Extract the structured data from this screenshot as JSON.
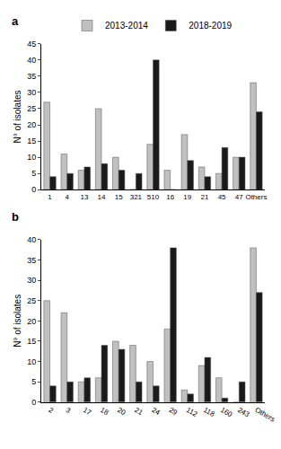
{
  "chart_data": [
    {
      "type": "bar",
      "title": "a",
      "y_label": "N° of isolates",
      "categories": [
        "1",
        "4",
        "13",
        "14",
        "15",
        "321",
        "510",
        "16",
        "19",
        "21",
        "45",
        "47",
        "Others"
      ],
      "series": [
        {
          "name": "2013-2014",
          "color": "#c0c0c0",
          "values": [
            27,
            11,
            6,
            25,
            10,
            0,
            14,
            6,
            17,
            7,
            5,
            10,
            33
          ]
        },
        {
          "name": "2018-2019",
          "color": "#1a1a1a",
          "values": [
            4,
            5,
            7,
            8,
            6,
            5,
            40,
            0,
            9,
            4,
            13,
            10,
            24
          ]
        }
      ],
      "ylim": [
        0,
        45
      ],
      "yticks": [
        0,
        5,
        10,
        15,
        20,
        25,
        30,
        35,
        40,
        45
      ],
      "grid": false,
      "legend": "top"
    },
    {
      "type": "bar",
      "title": "b",
      "y_label": "N° of isolates",
      "categories": [
        "2",
        "3",
        "17",
        "18",
        "20",
        "21",
        "24",
        "29",
        "112",
        "118",
        "160",
        "243",
        "Others"
      ],
      "series": [
        {
          "name": "2013-2014",
          "color": "#c0c0c0",
          "values": [
            25,
            22,
            5,
            6,
            15,
            14,
            10,
            18,
            3,
            9,
            6,
            0,
            38
          ]
        },
        {
          "name": "2018-2019",
          "color": "#1a1a1a",
          "values": [
            4,
            5,
            6,
            14,
            13,
            5,
            4,
            38,
            2,
            11,
            1,
            5,
            27
          ]
        }
      ],
      "ylim": [
        0,
        40
      ],
      "yticks": [
        0,
        5,
        10,
        15,
        20,
        25,
        30,
        35,
        40
      ],
      "grid": false
    }
  ]
}
